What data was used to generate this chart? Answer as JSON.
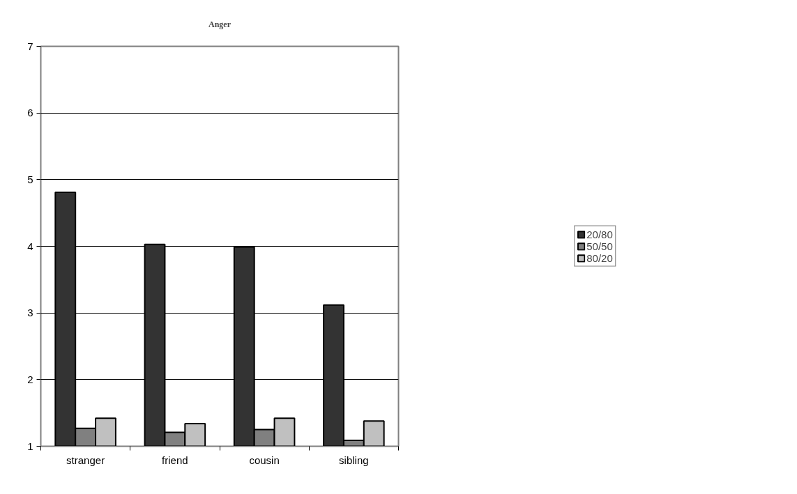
{
  "chart_data": {
    "type": "bar",
    "title": "Anger",
    "categories": [
      "stranger",
      "friend",
      "cousin",
      "sibling"
    ],
    "series": [
      {
        "name": "20/80",
        "color": "#333333",
        "values": [
          4.81,
          4.03,
          3.99,
          3.12
        ]
      },
      {
        "name": "50/50",
        "color": "#808080",
        "values": [
          1.27,
          1.21,
          1.25,
          1.09
        ]
      },
      {
        "name": "80/20",
        "color": "#c0c0c0",
        "values": [
          1.42,
          1.34,
          1.42,
          1.38
        ]
      }
    ],
    "ylim": [
      1,
      7
    ],
    "yticks": [
      1,
      2,
      3,
      4,
      5,
      6,
      7
    ],
    "grid": "y",
    "legend": "right"
  }
}
